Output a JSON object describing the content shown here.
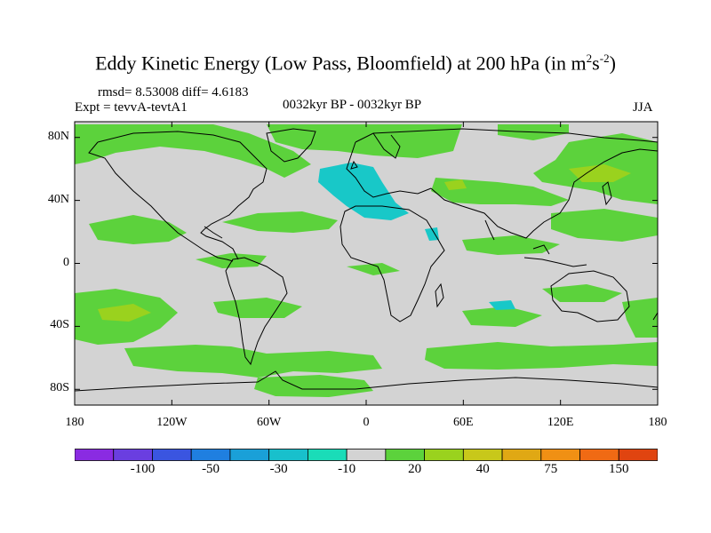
{
  "header": {
    "title_main": "Eddy Kinetic Energy (Low Pass, Bloomfield) at 200 hPa (in m",
    "title_sup1": "2",
    "title_mid": "s",
    "title_sup2": "-2",
    "title_end": ")",
    "stats": "rmsd= 8.53008 diff= 4.6183",
    "expt": "Expt = tevvA-tevtA1",
    "period": "0032kyr BP - 0032kyr BP",
    "season": "JJA"
  },
  "axes": {
    "lat_ticks": [
      "80N",
      "40N",
      "0",
      "40S",
      "80S"
    ],
    "lat_values": [
      80,
      40,
      0,
      -40,
      -80
    ],
    "lon_ticks": [
      "180",
      "120W",
      "60W",
      "0",
      "60E",
      "120E",
      "180"
    ],
    "lon_values": [
      -180,
      -120,
      -60,
      0,
      60,
      120,
      180
    ],
    "lat_range": [
      -90,
      90
    ],
    "lon_range": [
      -180,
      180
    ]
  },
  "colorbar": {
    "colors": [
      "#8a2be2",
      "#6a3ee0",
      "#3a55e0",
      "#1f7fe0",
      "#1aa0d8",
      "#18c0cc",
      "#1adcb8",
      "#d3d3d3",
      "#5cd23c",
      "#9ad21e",
      "#c8c81a",
      "#e0a814",
      "#f09014",
      "#f06a14",
      "#e04410"
    ],
    "labels": [
      "-100",
      "-50",
      "-30",
      "-10",
      "20",
      "40",
      "75",
      "150"
    ],
    "label_positions": [
      1,
      2,
      3,
      4,
      5,
      6,
      7,
      8
    ]
  },
  "map_colors": {
    "background": "#d3d3d3",
    "green": "#5cd23c",
    "yellowgreen": "#9ad21e",
    "cyan": "#18c8c8",
    "coast": "#000000"
  }
}
